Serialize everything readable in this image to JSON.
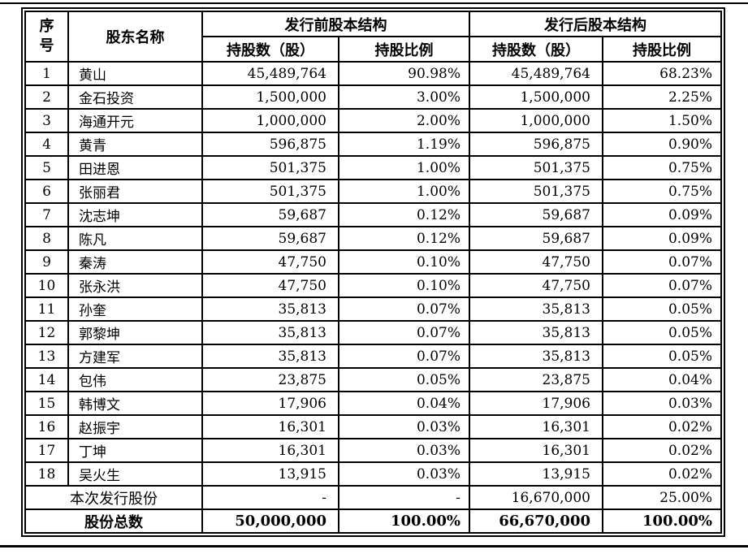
{
  "page": {
    "top_rule": true,
    "bottom_rule": true
  },
  "table": {
    "header": {
      "col_no": "序号",
      "col_shareholder": "股东名称",
      "group_pre": "发行前股本结构",
      "group_post": "发行后股本结构",
      "col_shares": "持股数（股）",
      "col_ratio": "持股比例"
    },
    "rows": [
      {
        "no": "1",
        "name": "黄山",
        "pre_shares": "45,489,764",
        "pre_ratio": "90.98%",
        "post_shares": "45,489,764",
        "post_ratio": "68.23%"
      },
      {
        "no": "2",
        "name": "金石投资",
        "pre_shares": "1,500,000",
        "pre_ratio": "3.00%",
        "post_shares": "1,500,000",
        "post_ratio": "2.25%"
      },
      {
        "no": "3",
        "name": "海通开元",
        "pre_shares": "1,000,000",
        "pre_ratio": "2.00%",
        "post_shares": "1,000,000",
        "post_ratio": "1.50%"
      },
      {
        "no": "4",
        "name": "黄青",
        "pre_shares": "596,875",
        "pre_ratio": "1.19%",
        "post_shares": "596,875",
        "post_ratio": "0.90%"
      },
      {
        "no": "5",
        "name": "田进恩",
        "pre_shares": "501,375",
        "pre_ratio": "1.00%",
        "post_shares": "501,375",
        "post_ratio": "0.75%"
      },
      {
        "no": "6",
        "name": "张丽君",
        "pre_shares": "501,375",
        "pre_ratio": "1.00%",
        "post_shares": "501,375",
        "post_ratio": "0.75%"
      },
      {
        "no": "7",
        "name": "沈志坤",
        "pre_shares": "59,687",
        "pre_ratio": "0.12%",
        "post_shares": "59,687",
        "post_ratio": "0.09%"
      },
      {
        "no": "8",
        "name": "陈凡",
        "pre_shares": "59,687",
        "pre_ratio": "0.12%",
        "post_shares": "59,687",
        "post_ratio": "0.09%"
      },
      {
        "no": "9",
        "name": "秦涛",
        "pre_shares": "47,750",
        "pre_ratio": "0.10%",
        "post_shares": "47,750",
        "post_ratio": "0.07%"
      },
      {
        "no": "10",
        "name": "张永洪",
        "pre_shares": "47,750",
        "pre_ratio": "0.10%",
        "post_shares": "47,750",
        "post_ratio": "0.07%"
      },
      {
        "no": "11",
        "name": "孙奎",
        "pre_shares": "35,813",
        "pre_ratio": "0.07%",
        "post_shares": "35,813",
        "post_ratio": "0.05%"
      },
      {
        "no": "12",
        "name": "郭黎坤",
        "pre_shares": "35,813",
        "pre_ratio": "0.07%",
        "post_shares": "35,813",
        "post_ratio": "0.05%"
      },
      {
        "no": "13",
        "name": "方建军",
        "pre_shares": "35,813",
        "pre_ratio": "0.07%",
        "post_shares": "35,813",
        "post_ratio": "0.05%"
      },
      {
        "no": "14",
        "name": "包伟",
        "pre_shares": "23,875",
        "pre_ratio": "0.05%",
        "post_shares": "23,875",
        "post_ratio": "0.04%"
      },
      {
        "no": "15",
        "name": "韩博文",
        "pre_shares": "17,906",
        "pre_ratio": "0.04%",
        "post_shares": "17,906",
        "post_ratio": "0.03%"
      },
      {
        "no": "16",
        "name": "赵振宇",
        "pre_shares": "16,301",
        "pre_ratio": "0.03%",
        "post_shares": "16,301",
        "post_ratio": "0.02%"
      },
      {
        "no": "17",
        "name": "丁坤",
        "pre_shares": "16,301",
        "pre_ratio": "0.03%",
        "post_shares": "16,301",
        "post_ratio": "0.02%"
      },
      {
        "no": "18",
        "name": "吴火生",
        "pre_shares": "13,915",
        "pre_ratio": "0.03%",
        "post_shares": "13,915",
        "post_ratio": "0.02%"
      }
    ],
    "issue_row": {
      "label": "本次发行股份",
      "pre_shares": "-",
      "pre_ratio": "-",
      "post_shares": "16,670,000",
      "post_ratio": "25.00%"
    },
    "total_row": {
      "label": "股份总数",
      "pre_shares": "50,000,000",
      "pre_ratio": "100.00%",
      "post_shares": "66,670,000",
      "post_ratio": "100.00%"
    }
  }
}
